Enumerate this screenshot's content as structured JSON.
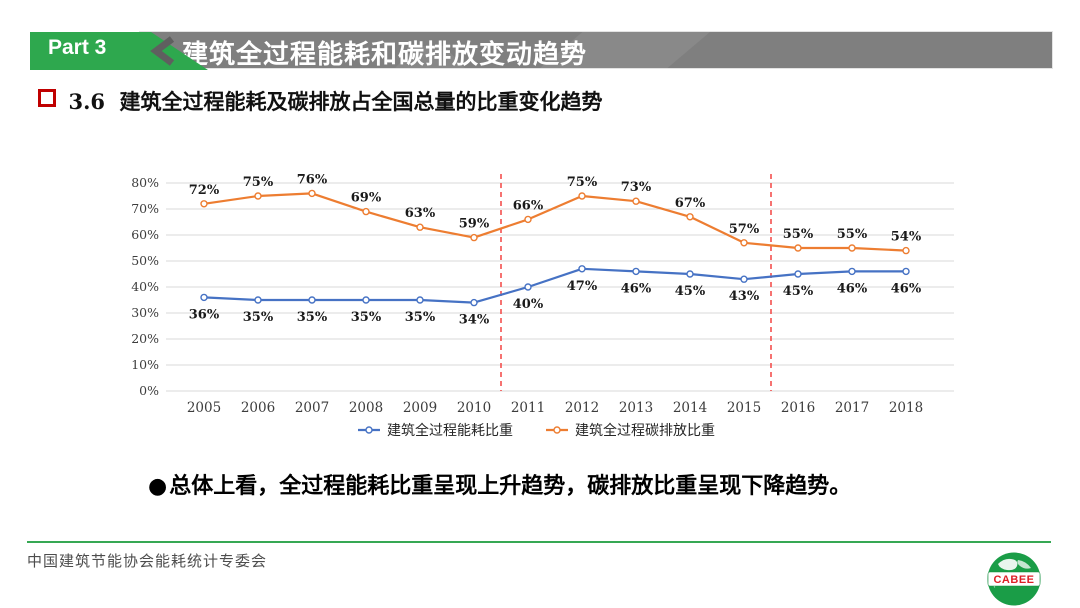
{
  "header": {
    "part_label": "Part 3",
    "title": "建筑全过程能耗和碳排放变动趋势",
    "accent_green": "#2ea84e",
    "bar_gray": "#7f7f7f"
  },
  "section": {
    "number": "3.6",
    "title": "建筑全过程能耗及碳排放占全国总量的比重变化趋势"
  },
  "chart_data": {
    "type": "line",
    "categories": [
      "2005",
      "2006",
      "2007",
      "2008",
      "2009",
      "2010",
      "2011",
      "2012",
      "2013",
      "2014",
      "2015",
      "2016",
      "2017",
      "2018"
    ],
    "series": [
      {
        "name": "建筑全过程能耗比重",
        "color": "#4672c4",
        "label_position": "below",
        "values": [
          36,
          35,
          35,
          35,
          35,
          34,
          40,
          47,
          46,
          45,
          43,
          45,
          46,
          46
        ]
      },
      {
        "name": "建筑全过程碳排放比重",
        "color": "#ed7d31",
        "label_position": "above",
        "values": [
          72,
          75,
          76,
          69,
          63,
          59,
          66,
          75,
          73,
          67,
          57,
          55,
          55,
          54
        ]
      }
    ],
    "ylim": [
      0,
      80
    ],
    "ytick_step": 10,
    "ytick_suffix": "%",
    "label_suffix": "%",
    "grid": true,
    "gridline_color": "#d9d9d9",
    "legend_position": "bottom",
    "dividers": {
      "color": "#f4504e",
      "positions": [
        5.5,
        10.5
      ]
    }
  },
  "summary": {
    "bullet": "●",
    "text": "总体上看，全过程能耗比重呈现上升趋势，碳排放比重呈现下降趋势。"
  },
  "footer": {
    "org": "中国建筑节能协会能耗统计专委会",
    "logo_text": "CABEE",
    "line_color": "#36a854",
    "logo_green": "#1a9d47",
    "logo_red": "#dd1f26"
  }
}
